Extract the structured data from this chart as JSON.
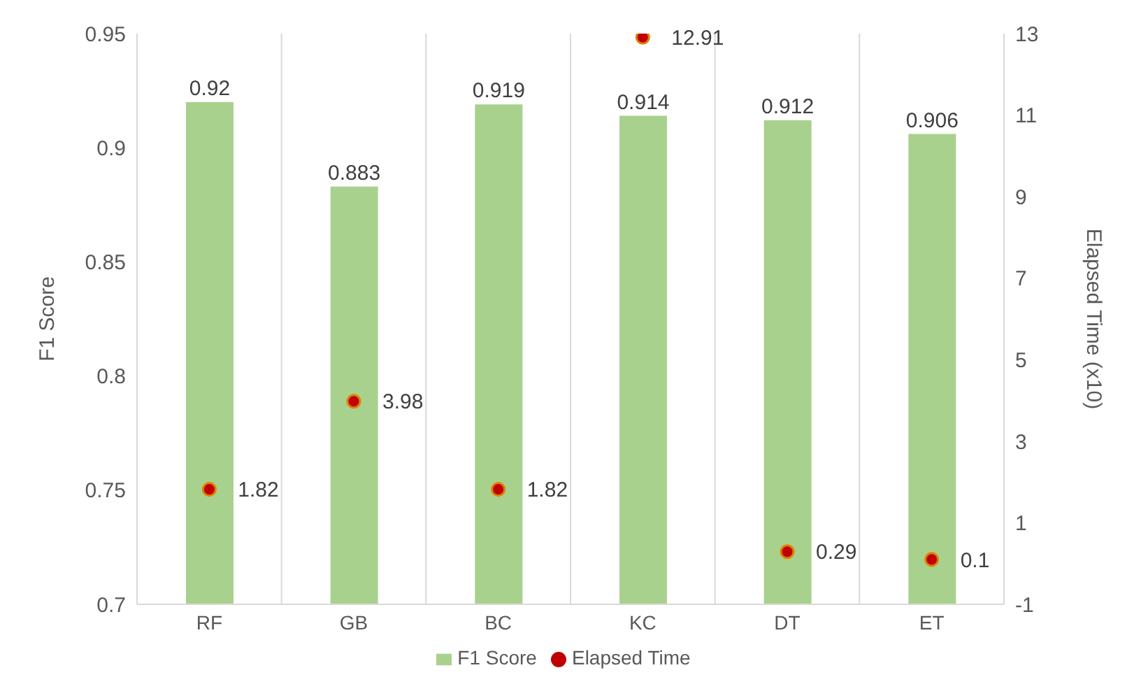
{
  "chart_data": {
    "type": "bar",
    "categories": [
      "RF",
      "GB",
      "BC",
      "KC",
      "DT",
      "ET"
    ],
    "ylabel": "F1 Score",
    "y2label": "Elapsed Time (x10)",
    "ylim": [
      0.7,
      0.95
    ],
    "yticks": [
      0.7,
      0.75,
      0.8,
      0.85,
      0.9,
      0.95
    ],
    "y2lim": [
      -1,
      13
    ],
    "y2ticks": [
      -1,
      1,
      3,
      5,
      7,
      9,
      11,
      13
    ],
    "grid": "x",
    "legend": "bottom",
    "data_labels": true,
    "marker": "circle",
    "series": [
      {
        "name": "F1 Score",
        "color": "#a9d18e",
        "values": [
          0.92,
          0.883,
          0.919,
          0.914,
          0.912,
          0.906
        ]
      },
      {
        "name": "Elapsed Time",
        "type": "scatter",
        "axis": "y2",
        "color": "#c00000",
        "values": [
          1.82,
          3.98,
          1.82,
          12.91,
          0.29,
          0.1
        ]
      }
    ]
  }
}
